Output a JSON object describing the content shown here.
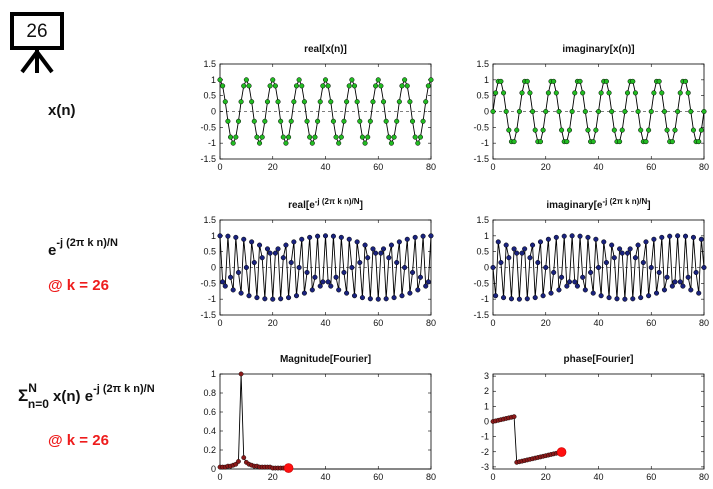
{
  "badge": {
    "number": "26"
  },
  "row_labels": {
    "signal": "x(n)",
    "basis_main": "e",
    "basis_sup": "-j (2π k n)/N",
    "basis_at_k": "@ k = 26",
    "sum_sigma": "Σ",
    "sum_sup": "N",
    "sum_sub": "n=0",
    "sum_xn": " x(n) e",
    "sum_sup2": "-j (2π k n)/N",
    "sum_at_k": "@ k = 26"
  },
  "panels": [
    {
      "id": "p1",
      "title": "real[x(n)]",
      "title_sup": "",
      "title_end": ""
    },
    {
      "id": "p2",
      "title": "imaginary[x(n)]",
      "title_sup": "",
      "title_end": ""
    },
    {
      "id": "p3",
      "title": "real[e",
      "title_sup": "-j (2π k n)/N",
      "title_end": "]"
    },
    {
      "id": "p4",
      "title": "imaginary[e",
      "title_sup": "-j (2π k n)/N",
      "title_end": "]"
    },
    {
      "id": "p5",
      "title": "Magnitude[Fourier]",
      "title_sup": "",
      "title_end": ""
    },
    {
      "id": "p6",
      "title": "phase[Fourier]",
      "title_sup": "",
      "title_end": ""
    }
  ],
  "chart_data": [
    {
      "type": "scatter",
      "panel": "p1",
      "title": "real[x(n)]",
      "series_desc": "x(n) = cos(2π·8n/80) sampled at n = 0..80",
      "xlim": [
        0,
        80
      ],
      "ylim": [
        -1.5,
        1.5
      ],
      "xticks": [
        0,
        20,
        40,
        60,
        80
      ],
      "yticks": [
        1.5,
        1,
        0.5,
        0,
        -0.5,
        -1,
        -1.5
      ],
      "freq_cycles": 8,
      "fn": "cos",
      "n_points": 81,
      "marker_color": "#22bb22"
    },
    {
      "type": "scatter",
      "panel": "p2",
      "title": "imaginary[x(n)]",
      "series_desc": "x(n) = sin(2π·8n/80) sampled at n = 0..80",
      "xlim": [
        0,
        80
      ],
      "ylim": [
        -1.5,
        1.5
      ],
      "xticks": [
        0,
        20,
        40,
        60,
        80
      ],
      "yticks": [
        1.5,
        1,
        0.5,
        0,
        -0.5,
        -1,
        -1.5
      ],
      "freq_cycles": 8,
      "fn": "sin",
      "n_points": 81,
      "marker_color": "#22bb22"
    },
    {
      "type": "scatter",
      "panel": "p3",
      "title": "real[e^-j(2πkn)/N]",
      "series_desc": "cos(2π·26n/80) for n = 0..80",
      "xlim": [
        0,
        80
      ],
      "ylim": [
        -1.5,
        1.5
      ],
      "xticks": [
        0,
        20,
        40,
        60,
        80
      ],
      "yticks": [
        1.5,
        1,
        0.5,
        0,
        -0.5,
        -1,
        -1.5
      ],
      "freq_cycles": 26,
      "fn": "cos",
      "n_points": 81,
      "marker_color": "#1a237e"
    },
    {
      "type": "scatter",
      "panel": "p4",
      "title": "imaginary[e^-j(2πkn)/N]",
      "series_desc": "-sin(2π·26n/80) for n = 0..80",
      "xlim": [
        0,
        80
      ],
      "ylim": [
        -1.5,
        1.5
      ],
      "xticks": [
        0,
        20,
        40,
        60,
        80
      ],
      "yticks": [
        1.5,
        1,
        0.5,
        0,
        -0.5,
        -1,
        -1.5
      ],
      "freq_cycles": 26,
      "fn": "-sin",
      "n_points": 81,
      "marker_color": "#1a237e"
    },
    {
      "type": "line",
      "panel": "p5",
      "title": "Magnitude[Fourier]",
      "x": [
        0,
        1,
        2,
        3,
        4,
        5,
        6,
        7,
        8,
        9,
        10,
        11,
        12,
        13,
        14,
        15,
        16,
        17,
        18,
        19,
        20,
        21,
        22,
        23,
        24,
        25,
        26
      ],
      "y": [
        0.02,
        0.02,
        0.02,
        0.03,
        0.03,
        0.04,
        0.05,
        0.08,
        1.0,
        0.12,
        0.07,
        0.05,
        0.04,
        0.03,
        0.03,
        0.02,
        0.02,
        0.02,
        0.02,
        0.02,
        0.01,
        0.01,
        0.01,
        0.01,
        0.01,
        0.01,
        0.01
      ],
      "trail_x": [
        26,
        80
      ],
      "trail_y": [
        0,
        0
      ],
      "highlight": {
        "x": 26,
        "y": 0.01
      },
      "xlim": [
        0,
        80
      ],
      "ylim": [
        0,
        1
      ],
      "xticks": [
        0,
        20,
        40,
        60,
        80
      ],
      "yticks": [
        1,
        0.8,
        0.6,
        0.4,
        0.2,
        0
      ],
      "marker_color": "#8b1a1a"
    },
    {
      "type": "line",
      "panel": "p6",
      "title": "phase[Fourier]",
      "x": [
        0,
        1,
        2,
        3,
        4,
        5,
        6,
        7,
        8,
        9,
        10,
        11,
        12,
        13,
        14,
        15,
        16,
        17,
        18,
        19,
        20,
        21,
        22,
        23,
        24,
        25,
        26
      ],
      "y": [
        0.0,
        0.04,
        0.08,
        0.12,
        0.16,
        0.2,
        0.24,
        0.28,
        0.32,
        -2.7,
        -2.66,
        -2.62,
        -2.58,
        -2.54,
        -2.5,
        -2.46,
        -2.42,
        -2.38,
        -2.34,
        -2.3,
        -2.26,
        -2.22,
        -2.18,
        -2.14,
        -2.1,
        -2.06,
        -2.02
      ],
      "highlight": {
        "x": 26,
        "y": -2.02
      },
      "xlim": [
        0,
        80
      ],
      "ylim": [
        -3.14,
        3.14
      ],
      "xticks": [
        0,
        20,
        40,
        60,
        80
      ],
      "yticks": [
        3,
        2,
        1,
        0,
        -1,
        -2,
        -3
      ],
      "marker_color": "#8b1a1a"
    }
  ]
}
